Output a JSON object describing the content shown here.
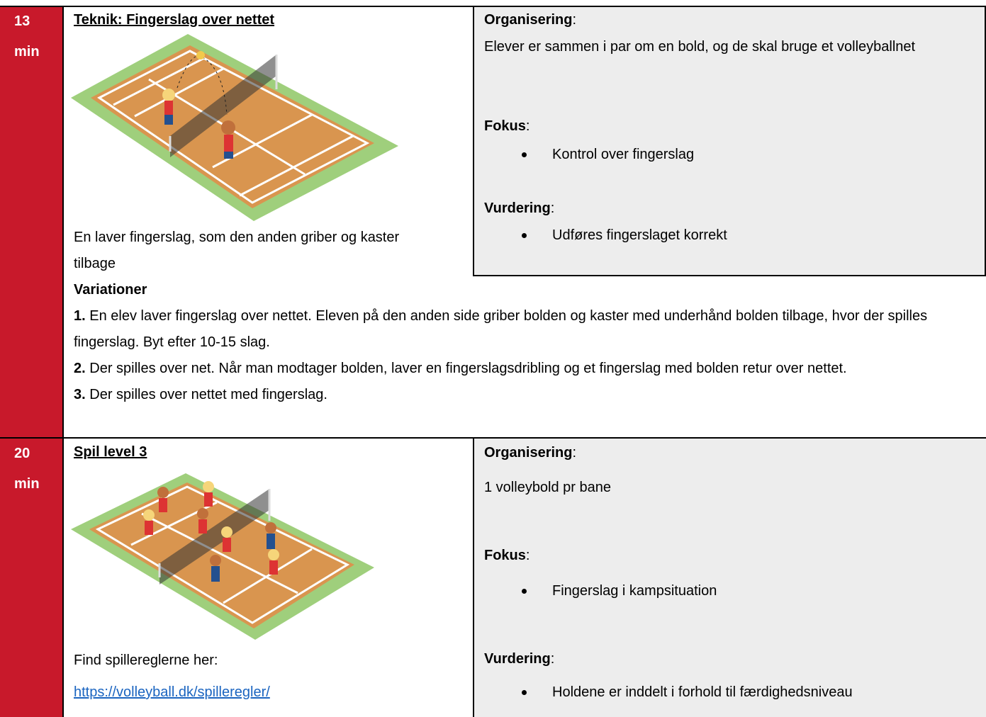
{
  "rows": [
    {
      "time": [
        "13",
        "min"
      ],
      "title": "Teknik: Fingerslag over nettet",
      "description": [
        "En laver fingerslag, som den anden griber og kaster tilbage"
      ],
      "organisering": {
        "label": "Organisering",
        "colon": ":",
        "text": "Elever er sammen i par om en bold, og de skal bruge et volleyballnet"
      },
      "fokus": {
        "label": "Fokus",
        "colon": ":",
        "items": [
          "Kontrol over fingerslag"
        ]
      },
      "vurdering": {
        "label": "Vurdering",
        "colon": ":",
        "items": [
          "Udføres fingerslaget korrekt"
        ]
      },
      "variationer": {
        "label": "Variationer",
        "items": [
          {
            "number": "1.",
            "text": "En elev laver fingerslag over nettet. Eleven på den anden side griber bolden og kaster med underhånd bolden tilbage, hvor der spilles fingerslag. Byt efter 10-15 slag."
          },
          {
            "number": "2.",
            "text": "Der spilles over net. Når man modtager bolden, laver en fingerslagsdribling og et fingerslag med bolden retur over nettet."
          },
          {
            "number": "3.",
            "text": "Der spilles over nettet med fingerslag."
          }
        ]
      }
    },
    {
      "time": [
        "20",
        "min"
      ],
      "title": "Spil level 3",
      "description": [
        "Find spillereglerne her:",
        "https://volleyball.dk/spilleregler/"
      ],
      "organisering": {
        "label": "Organisering",
        "colon": ":",
        "text": "1 volleybold pr bane"
      },
      "fokus": {
        "label": "Fokus",
        "colon": ":",
        "items": [
          "Fingerslag i kampsituation"
        ]
      },
      "vurdering": {
        "label": "Vurdering",
        "colon": ":",
        "items": [
          "Holdene er inddelt i forhold til færdighedsniveau"
        ]
      }
    }
  ]
}
